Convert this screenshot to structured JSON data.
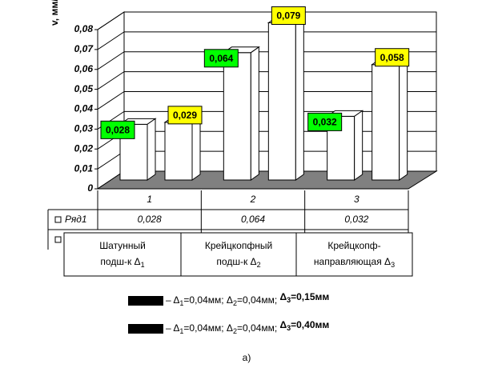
{
  "chart_data": {
    "type": "bar3d",
    "y_label": "v, мм/с",
    "categories": [
      "1",
      "2",
      "3"
    ],
    "series": [
      {
        "name": "Ряд1",
        "color": "#ffffff",
        "label_color": "#00ff00",
        "values": [
          0.028,
          0.064,
          0.032
        ],
        "value_labels": [
          "0,028",
          "0,064",
          "0,032"
        ]
      },
      {
        "color": "#ffffff",
        "label_color": "#ffff00",
        "values": [
          0.029,
          0.079,
          0.058
        ],
        "value_labels": [
          "0,029",
          "0,079",
          "0,058"
        ]
      }
    ],
    "ylim": [
      0,
      0.08
    ],
    "yticks": [
      0,
      {
        "value": 0.01,
        "label": "0,01"
      },
      {
        "value": 0.02,
        "label": "0,02"
      },
      {
        "value": 0.03,
        "label": "0,03"
      },
      {
        "value": 0.04,
        "label": "0,04"
      },
      {
        "value": 0.05,
        "label": "0,05"
      },
      {
        "value": 0.06,
        "label": "0,06"
      },
      {
        "value": 0.07,
        "label": "0,07"
      },
      {
        "value": 0.08,
        "label": "0,08"
      }
    ],
    "grid": true,
    "floor_color": "#808080",
    "descriptions": [
      {
        "line1": "Шатунный",
        "line2": "подш-к Δ",
        "sub": "1"
      },
      {
        "line1": "Крейцкопфный",
        "line2": "подш-к Δ",
        "sub": "2"
      },
      {
        "line1": "Крейцкопф-",
        "line2": "направляющая Δ",
        "sub": "3"
      }
    ],
    "legend": [
      {
        "color": "#000000",
        "parts": [
          "– Δ",
          "1",
          "=0,04мм; Δ",
          "2",
          "=0,04мм; ",
          "Δ",
          "3",
          "=0,15мм"
        ]
      },
      {
        "color": "#000000",
        "parts": [
          "– Δ",
          "1",
          "=0,04мм; Δ",
          "2",
          "=0,04мм; ",
          "Δ",
          "3",
          "=0,40мм"
        ]
      }
    ],
    "caption": "а)"
  }
}
